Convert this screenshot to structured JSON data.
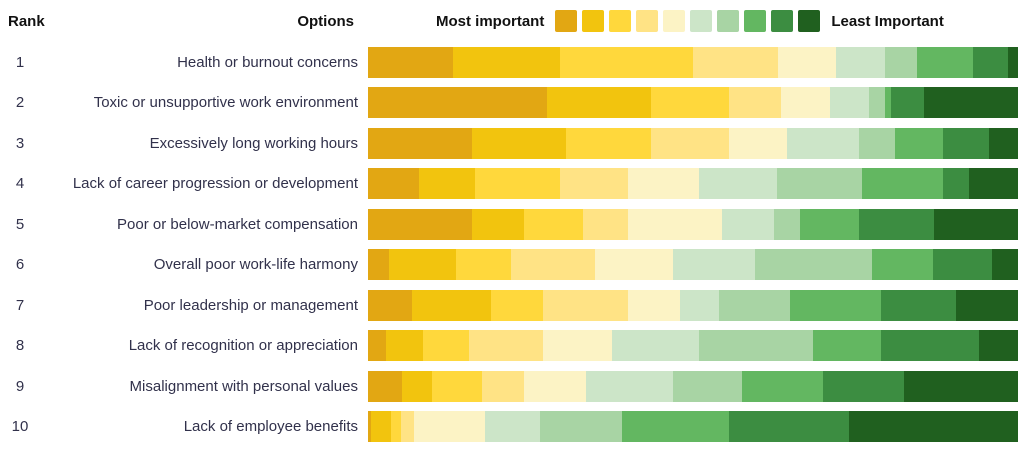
{
  "header": {
    "rank_label": "Rank",
    "options_label": "Options"
  },
  "chart_data": {
    "type": "bar",
    "subtype": "horizontal-stacked-100pct-ranking",
    "title": "",
    "xlabel": "",
    "ylabel": "",
    "xlim": [
      0,
      100
    ],
    "grid": false,
    "legend": {
      "position": "top",
      "left_label": "Most important",
      "right_label": "Least Important",
      "colors": [
        "#E2A713",
        "#F2C40E",
        "#FFD83C",
        "#FFE385",
        "#FCF3C5",
        "#CCE5C8",
        "#A8D4A4",
        "#63B761",
        "#3C8D41",
        "#20601F"
      ]
    },
    "series_note": "Each row is a 100%-stacked distribution across 10 importance buckets, from Most important (gold) to Least Important (dark green). Values are percentages.",
    "rows": [
      {
        "rank": "1",
        "label": "Health or burnout concerns",
        "values": [
          13,
          16.5,
          20.5,
          13,
          9,
          7.5,
          5,
          8.5,
          5.5,
          1.5
        ]
      },
      {
        "rank": "2",
        "label": "Toxic or unsupportive work environment",
        "values": [
          27.5,
          16,
          12,
          8,
          7.5,
          6,
          2.5,
          1,
          5,
          14.5
        ]
      },
      {
        "rank": "3",
        "label": "Excessively long working hours",
        "values": [
          16,
          14.5,
          13,
          12,
          9,
          11,
          5.5,
          7.5,
          7,
          4.5
        ]
      },
      {
        "rank": "4",
        "label": "Lack of career progression or development",
        "values": [
          7.8,
          8.7,
          13,
          10.5,
          11,
          12,
          13,
          12.5,
          4,
          7.5
        ]
      },
      {
        "rank": "5",
        "label": "Poor or below-market compensation",
        "values": [
          16,
          8,
          9,
          7,
          14.5,
          8,
          4,
          9,
          11.5,
          13
        ]
      },
      {
        "rank": "6",
        "label": "Overall poor work-life harmony",
        "values": [
          3.3,
          10.2,
          8.5,
          13,
          12,
          12.5,
          18,
          9.5,
          9,
          4
        ]
      },
      {
        "rank": "7",
        "label": "Poor leadership or management",
        "values": [
          6.8,
          12.2,
          8,
          13,
          8,
          6,
          11,
          14,
          11.5,
          9.5
        ]
      },
      {
        "rank": "8",
        "label": "Lack of recognition or appreciation",
        "values": [
          2.8,
          5.7,
          7,
          11.5,
          10.5,
          13.5,
          17.5,
          10.5,
          15,
          6
        ]
      },
      {
        "rank": "9",
        "label": "Misalignment with personal values",
        "values": [
          5.2,
          4.6,
          7.7,
          6.5,
          9.5,
          13.5,
          10.5,
          12.5,
          12.5,
          17.5
        ]
      },
      {
        "rank": "10",
        "label": "Lack of employee benefits",
        "values": [
          0.5,
          3,
          1.5,
          2,
          11,
          8.5,
          12.5,
          16.5,
          18.5,
          26
        ]
      }
    ]
  }
}
